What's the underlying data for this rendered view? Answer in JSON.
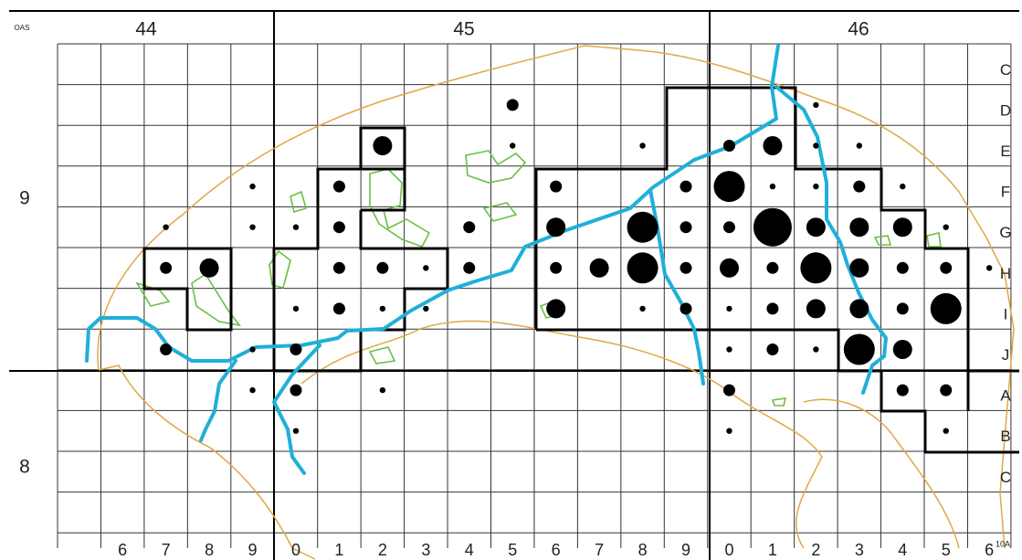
{
  "map": {
    "corner_label": "OAS",
    "corner_label_2": "10A",
    "sheets": [
      "44",
      "45",
      "46"
    ],
    "row_groups": [
      "9",
      "8"
    ],
    "row_letters": [
      "C",
      "D",
      "E",
      "F",
      "G",
      "H",
      "I",
      "J",
      "A",
      "B",
      "C"
    ],
    "column_numbers": [
      "6",
      "7",
      "8",
      "9",
      "0",
      "1",
      "2",
      "3",
      "4",
      "5",
      "6",
      "7",
      "8",
      "9",
      "0",
      "1",
      "2",
      "3",
      "4",
      "5",
      "6"
    ]
  }
}
